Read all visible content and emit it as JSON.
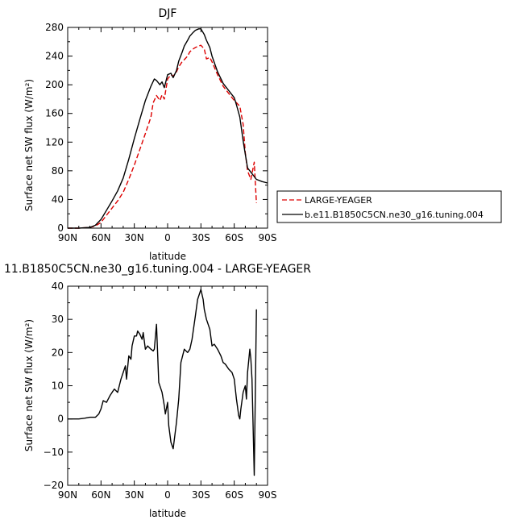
{
  "chart_data": [
    {
      "type": "line",
      "title": "DJF",
      "xlabel": "latitude",
      "ylabel": "Surface net SW flux (W/m²)",
      "xlim": [
        -90,
        90
      ],
      "ylim": [
        0,
        280
      ],
      "xticks": [
        -90,
        -60,
        -30,
        0,
        30,
        60,
        90
      ],
      "xtick_labels": [
        "90N",
        "60N",
        "30N",
        "0",
        "30S",
        "60S",
        "90S"
      ],
      "yticks": [
        0,
        40,
        80,
        120,
        160,
        200,
        240,
        280
      ],
      "ytick_labels": [
        "0",
        "40",
        "80",
        "120",
        "160",
        "200",
        "240",
        "280"
      ],
      "legend_position": "right",
      "series": [
        {
          "name": "LARGE-YEAGER",
          "color": "#dd0000",
          "dash": "dashed",
          "x": [
            -90,
            -80,
            -70,
            -65,
            -60,
            -55,
            -50,
            -45,
            -40,
            -35,
            -30,
            -25,
            -20,
            -15,
            -13,
            -10,
            -7,
            -5,
            -3,
            0,
            3,
            5,
            8,
            10,
            13,
            15,
            18,
            20,
            23,
            25,
            28,
            30,
            33,
            35,
            38,
            40,
            45,
            50,
            55,
            60,
            62,
            65,
            68,
            70,
            72,
            75,
            78,
            80
          ],
          "y": [
            0,
            0,
            1,
            3,
            8,
            18,
            28,
            38,
            50,
            68,
            88,
            110,
            132,
            155,
            175,
            185,
            178,
            186,
            180,
            208,
            214,
            212,
            218,
            225,
            232,
            235,
            240,
            246,
            250,
            252,
            254,
            255,
            250,
            236,
            238,
            232,
            214,
            198,
            188,
            178,
            175,
            170,
            145,
            105,
            80,
            68,
            92,
            35
          ]
        },
        {
          "name": "b.e11.B1850C5CN.ne30_g16.tuning.004",
          "color": "#000000",
          "dash": "solid",
          "x": [
            -90,
            -80,
            -70,
            -65,
            -60,
            -55,
            -50,
            -45,
            -40,
            -35,
            -30,
            -25,
            -20,
            -15,
            -12,
            -10,
            -7,
            -5,
            -3,
            0,
            3,
            5,
            8,
            10,
            13,
            15,
            18,
            20,
            23,
            25,
            28,
            30,
            33,
            35,
            38,
            40,
            45,
            50,
            55,
            60,
            62,
            65,
            68,
            70,
            72,
            75,
            80,
            85,
            90
          ],
          "y": [
            0,
            0,
            1,
            4,
            12,
            25,
            38,
            52,
            70,
            96,
            125,
            152,
            178,
            198,
            208,
            206,
            200,
            204,
            196,
            214,
            216,
            210,
            220,
            233,
            245,
            254,
            262,
            268,
            273,
            276,
            278,
            278,
            270,
            262,
            252,
            240,
            218,
            202,
            192,
            182,
            172,
            155,
            122,
            103,
            84,
            78,
            68,
            65,
            63
          ]
        }
      ]
    },
    {
      "type": "line",
      "title": "11.B1850C5CN.ne30_g16.tuning.004 - LARGE-YEAGER",
      "xlabel": "latitude",
      "ylabel": "Surface net SW flux (W/m²)",
      "xlim": [
        -90,
        90
      ],
      "ylim": [
        -20,
        40
      ],
      "xticks": [
        -90,
        -60,
        -30,
        0,
        30,
        60,
        90
      ],
      "xtick_labels": [
        "90N",
        "60N",
        "30N",
        "0",
        "30S",
        "60S",
        "90S"
      ],
      "yticks": [
        -20,
        -10,
        0,
        10,
        20,
        30,
        40
      ],
      "ytick_labels": [
        "−20",
        "−10",
        "0",
        "10",
        "20",
        "30",
        "40"
      ],
      "series": [
        {
          "name": "",
          "color": "#000000",
          "dash": "solid",
          "x": [
            -90,
            -80,
            -75,
            -70,
            -65,
            -62,
            -60,
            -58,
            -55,
            -52,
            -50,
            -48,
            -45,
            -42,
            -40,
            -38,
            -37,
            -35,
            -33,
            -32,
            -30,
            -28,
            -27,
            -25,
            -23,
            -22,
            -20,
            -18,
            -15,
            -13,
            -12,
            -10,
            -8,
            -5,
            -3,
            -2,
            0,
            1,
            3,
            5,
            8,
            10,
            12,
            15,
            18,
            20,
            22,
            25,
            27,
            30,
            32,
            33,
            35,
            38,
            40,
            42,
            45,
            48,
            50,
            52,
            55,
            58,
            60,
            62,
            64,
            65,
            66,
            68,
            70,
            71,
            72,
            74,
            75,
            76,
            78,
            80
          ],
          "y": [
            0,
            0,
            0.2,
            0.5,
            0.5,
            1.5,
            3,
            5.5,
            5,
            7,
            8,
            9,
            8,
            12,
            14,
            16,
            12,
            19,
            18,
            22,
            25,
            25,
            26.5,
            25.5,
            24,
            26,
            21,
            22,
            21,
            20.5,
            21,
            28.5,
            11,
            8,
            4,
            1.5,
            5,
            -2,
            -7,
            -9,
            -1,
            6,
            17,
            21,
            20,
            21,
            24,
            31,
            36,
            39,
            36,
            33,
            30,
            27,
            22,
            22.5,
            21,
            19,
            17,
            16.5,
            15,
            14,
            12,
            6,
            1,
            0,
            3,
            8,
            10,
            6,
            14,
            21,
            18,
            12,
            -17,
            33
          ]
        }
      ]
    }
  ]
}
